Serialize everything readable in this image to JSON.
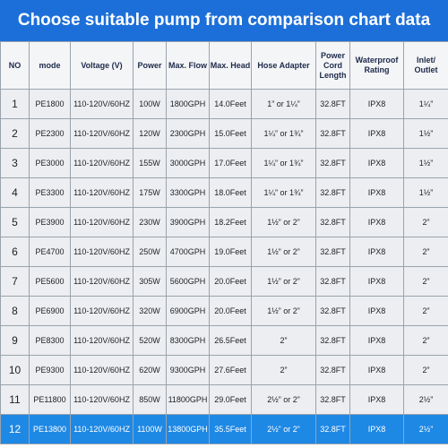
{
  "header": {
    "title": "Choose suitable pump from comparison chart data"
  },
  "table": {
    "columns": [
      "NO",
      "mode",
      "Voltage (V)",
      "Power",
      "Max. Flow",
      "Max. Head",
      "Hose Adapter",
      "Power Cord Length",
      "Waterproof Rating",
      "Inlet/ Outlet"
    ],
    "rows": [
      [
        "1",
        "PE1800",
        "110-120V/60HZ",
        "100W",
        "1800GPH",
        "14.0Feet",
        "1” or 1¼”",
        "32.8FT",
        "IPX8",
        "1¼”"
      ],
      [
        "2",
        "PE2300",
        "110-120V/60HZ",
        "120W",
        "2300GPH",
        "15.0Feet",
        "1¼” or 1¾”",
        "32.8FT",
        "IPX8",
        "1½”"
      ],
      [
        "3",
        "PE3000",
        "110-120V/60HZ",
        "155W",
        "3000GPH",
        "17.0Feet",
        "1¼” or 1¾”",
        "32.8FT",
        "IPX8",
        "1½”"
      ],
      [
        "4",
        "PE3300",
        "110-120V/60HZ",
        "175W",
        "3300GPH",
        "18.0Feet",
        "1¼” or 1¾”",
        "32.8FT",
        "IPX8",
        "1½”"
      ],
      [
        "5",
        "PE3900",
        "110-120V/60HZ",
        "230W",
        "3900GPH",
        "18.2Feet",
        "1½” or 2”",
        "32.8FT",
        "IPX8",
        "2”"
      ],
      [
        "6",
        "PE4700",
        "110-120V/60HZ",
        "250W",
        "4700GPH",
        "19.0Feet",
        "1½” or 2”",
        "32.8FT",
        "IPX8",
        "2”"
      ],
      [
        "7",
        "PE5600",
        "110-120V/60HZ",
        "305W",
        "5600GPH",
        "20.0Feet",
        "1½” or 2”",
        "32.8FT",
        "IPX8",
        "2”"
      ],
      [
        "8",
        "PE6900",
        "110-120V/60HZ",
        "320W",
        "6900GPH",
        "20.0Feet",
        "1½” or 2”",
        "32.8FT",
        "IPX8",
        "2”"
      ],
      [
        "9",
        "PE8300",
        "110-120V/60HZ",
        "520W",
        "8300GPH",
        "26.5Feet",
        "2”",
        "32.8FT",
        "IPX8",
        "2”"
      ],
      [
        "10",
        "PE9300",
        "110-120V/60HZ",
        "620W",
        "9300GPH",
        "27.6Feet",
        "2”",
        "32.8FT",
        "IPX8",
        "2”"
      ],
      [
        "11",
        "PE11800",
        "110-120V/60HZ",
        "850W",
        "11800GPH",
        "29.0Feet",
        "2½” or 2”",
        "32.8FT",
        "IPX8",
        "2½”"
      ],
      [
        "12",
        "PE13800",
        "110-120V/60HZ",
        "1100W",
        "13800GPH",
        "35.5Feet",
        "2½” or 2”",
        "32.8FT",
        "IPX8",
        "2½”"
      ]
    ]
  }
}
